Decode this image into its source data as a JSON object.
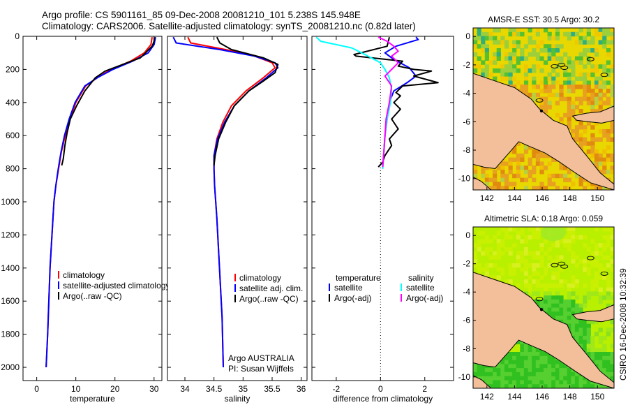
{
  "title": {
    "line1": "Argo profile: CS 5901161_85 09-Dec-2008 20081210_101 5.238S 145.948E",
    "line2": "Climatology: CARS2006. Satellite-adjusted climatology: synTS_20081210.nc (0.82d later)"
  },
  "credit": "CSIRO 16-Dec-2008 10:32:39",
  "colors": {
    "climatology": "#ff0000",
    "satellite": "#0000ff",
    "argo": "#000000",
    "sal_satellite": "#00ffff",
    "sal_argo": "#ff00ff",
    "land": "#f2bf9a",
    "ocean_sst": "#e8d800",
    "ocean_sla": "#b8f000",
    "sla_green": "#30c020",
    "sst_orange": "#e08a10",
    "sst_green": "#55c030"
  },
  "chart_data": [
    {
      "id": "temperature",
      "type": "line",
      "xlabel": "temperature",
      "xlim": [
        -3.5,
        32
      ],
      "xticks": [
        0,
        10,
        20,
        30
      ],
      "ylim": [
        0,
        2080
      ],
      "yticks": [
        0,
        200,
        400,
        600,
        800,
        1000,
        1200,
        1400,
        1600,
        1800,
        2000
      ],
      "legend": [
        "climatology",
        "satellite-adjusted climatology",
        "Argo(..raw -QC)"
      ],
      "series": [
        {
          "name": "climatology",
          "color": "#ff0000",
          "x": [
            29.5,
            29.2,
            27.5,
            24,
            19,
            15.5,
            12.5,
            10,
            8.5,
            7.3,
            6.3,
            5.6,
            4.9,
            4.4,
            3.9,
            3.4,
            3.1,
            2.8,
            2.6,
            2.4
          ],
          "y": [
            5,
            50,
            100,
            150,
            200,
            250,
            300,
            400,
            500,
            600,
            700,
            800,
            900,
            1000,
            1200,
            1400,
            1600,
            1800,
            1900,
            2000
          ]
        },
        {
          "name": "satellite-adjusted climatology",
          "color": "#0000ff",
          "x": [
            30.4,
            30,
            28.5,
            24.5,
            19.5,
            15.5,
            12.3,
            9.8,
            8.3,
            7.1,
            6.2,
            5.5,
            4.9,
            4.4,
            3.9,
            3.4,
            3.1,
            2.8,
            2.6,
            2.4
          ],
          "y": [
            5,
            50,
            100,
            150,
            200,
            250,
            300,
            400,
            500,
            600,
            700,
            800,
            900,
            1000,
            1200,
            1400,
            1600,
            1800,
            1900,
            2000
          ]
        },
        {
          "name": "Argo(..raw -QC)",
          "color": "#000000",
          "x": [
            30.1,
            30,
            29.5,
            27.8,
            26.5,
            22,
            17.5,
            15,
            12.3,
            10.2,
            8.6,
            7.8,
            7.2,
            6.8,
            6.4
          ],
          "y": [
            5,
            30,
            60,
            100,
            130,
            170,
            210,
            250,
            330,
            420,
            500,
            580,
            660,
            740,
            780
          ]
        }
      ]
    },
    {
      "id": "salinity",
      "type": "line",
      "xlabel": "salinity",
      "xlim": [
        33.7,
        36.1
      ],
      "xticks": [
        34,
        34.5,
        35,
        35.5,
        36
      ],
      "ylim": [
        0,
        2080
      ],
      "legend": [
        "climatology",
        "satellite adj. clim.",
        "Argo(..raw -QC)"
      ],
      "annotation": [
        "Argo AUSTRALIA",
        "PI: Susan Wijffels"
      ],
      "series": [
        {
          "name": "climatology",
          "color": "#ff0000",
          "x": [
            34.05,
            34.1,
            34.7,
            35.2,
            35.5,
            35.55,
            35.35,
            35.05,
            34.8,
            34.65,
            34.55,
            34.5,
            34.5,
            34.51,
            34.55,
            34.58,
            34.61,
            34.64,
            34.66
          ],
          "y": [
            5,
            40,
            80,
            120,
            160,
            190,
            250,
            330,
            420,
            520,
            620,
            720,
            800,
            900,
            1100,
            1300,
            1500,
            1700,
            2000
          ]
        },
        {
          "name": "satellite adj. clim.",
          "color": "#0000ff",
          "x": [
            33.8,
            33.85,
            34.6,
            35.2,
            35.55,
            35.6,
            35.4,
            35.1,
            34.85,
            34.68,
            34.56,
            34.5,
            34.5,
            34.51,
            34.55,
            34.58,
            34.61,
            34.64,
            34.66
          ],
          "y": [
            5,
            40,
            80,
            120,
            160,
            190,
            250,
            330,
            420,
            520,
            620,
            720,
            800,
            900,
            1100,
            1300,
            1500,
            1700,
            2000
          ]
        },
        {
          "name": "Argo(..raw -QC)",
          "color": "#000000",
          "x": [
            34.55,
            34.6,
            34.8,
            35.35,
            35.6,
            35.55,
            35.35,
            35.1,
            34.85,
            34.7,
            34.58,
            34.52,
            34.5
          ],
          "y": [
            5,
            40,
            80,
            130,
            170,
            220,
            270,
            330,
            420,
            520,
            620,
            720,
            780
          ]
        }
      ]
    },
    {
      "id": "difference",
      "type": "line",
      "xlabel": "difference from climatology",
      "xlim": [
        -3.1,
        3.3
      ],
      "xticks": [
        -2,
        0,
        2
      ],
      "ylim": [
        0,
        2080
      ],
      "legend_titles": [
        "temperature",
        "salinity"
      ],
      "legend": [
        "satellite",
        "Argo(-adj)",
        "satellite",
        "Argo(-adj)"
      ],
      "series": [
        {
          "name": "temperature satellite",
          "color": "#0000ff",
          "x": [
            1.6,
            1.7,
            0.7,
            0.2,
            0.6,
            1.3,
            1.6,
            1.2,
            0.6,
            0.4,
            0.3,
            0.2,
            0.15,
            0.1,
            0.1
          ],
          "y": [
            5,
            20,
            60,
            100,
            140,
            190,
            240,
            280,
            330,
            400,
            500,
            600,
            700,
            780,
            800
          ]
        },
        {
          "name": "temperature Argo(-adj)",
          "color": "#000000",
          "x": [
            0.4,
            0.3,
            -1.2,
            -1.1,
            1.0,
            0.8,
            1.5,
            2.3,
            1.5,
            2.6,
            1.0,
            0.7,
            0.9,
            0.6,
            0.9,
            0.5,
            0.8,
            0.4,
            0.5,
            0.2,
            0.1,
            -0.1
          ],
          "y": [
            5,
            60,
            110,
            120,
            150,
            180,
            200,
            210,
            240,
            280,
            300,
            340,
            360,
            400,
            440,
            500,
            560,
            620,
            660,
            720,
            760,
            790
          ]
        },
        {
          "name": "salinity satellite",
          "color": "#00ffff",
          "x": [
            -2.9,
            -2.7,
            -1.3,
            -0.7,
            0.0,
            0.2,
            0.4,
            0.5,
            0.45,
            0.3,
            0.2,
            0.15,
            0.1
          ],
          "y": [
            5,
            30,
            70,
            110,
            160,
            200,
            250,
            320,
            400,
            500,
            600,
            700,
            800
          ]
        },
        {
          "name": "salinity Argo(-adj)",
          "color": "#ff00ff",
          "x": [
            -0.1,
            0.3,
            0.6,
            0.8,
            0.5,
            0.8,
            0.5,
            0.2,
            0.5,
            0.4,
            0.25,
            0.2,
            0.15,
            0.1
          ],
          "y": [
            5,
            30,
            60,
            90,
            120,
            160,
            200,
            240,
            300,
            400,
            500,
            600,
            700,
            790
          ]
        }
      ]
    },
    {
      "id": "sst-map",
      "type": "heatmap",
      "title": "AMSR-E SST: 30.5 Argo: 30.2",
      "xlim": [
        141,
        151.2
      ],
      "xticks": [
        142,
        144,
        146,
        148,
        150
      ],
      "ylim": [
        -10.8,
        0.6
      ],
      "yticks": [
        0,
        -2,
        -4,
        -6,
        -8,
        -10
      ]
    },
    {
      "id": "sla-map",
      "type": "heatmap",
      "title": "Altimetric SLA: 0.18 Argo: 0.059",
      "xlim": [
        141,
        151.2
      ],
      "xticks": [
        142,
        144,
        146,
        148,
        150
      ],
      "ylim": [
        -10.8,
        0.6
      ],
      "yticks": [
        0,
        -2,
        -4,
        -6,
        -8,
        -10
      ]
    }
  ]
}
